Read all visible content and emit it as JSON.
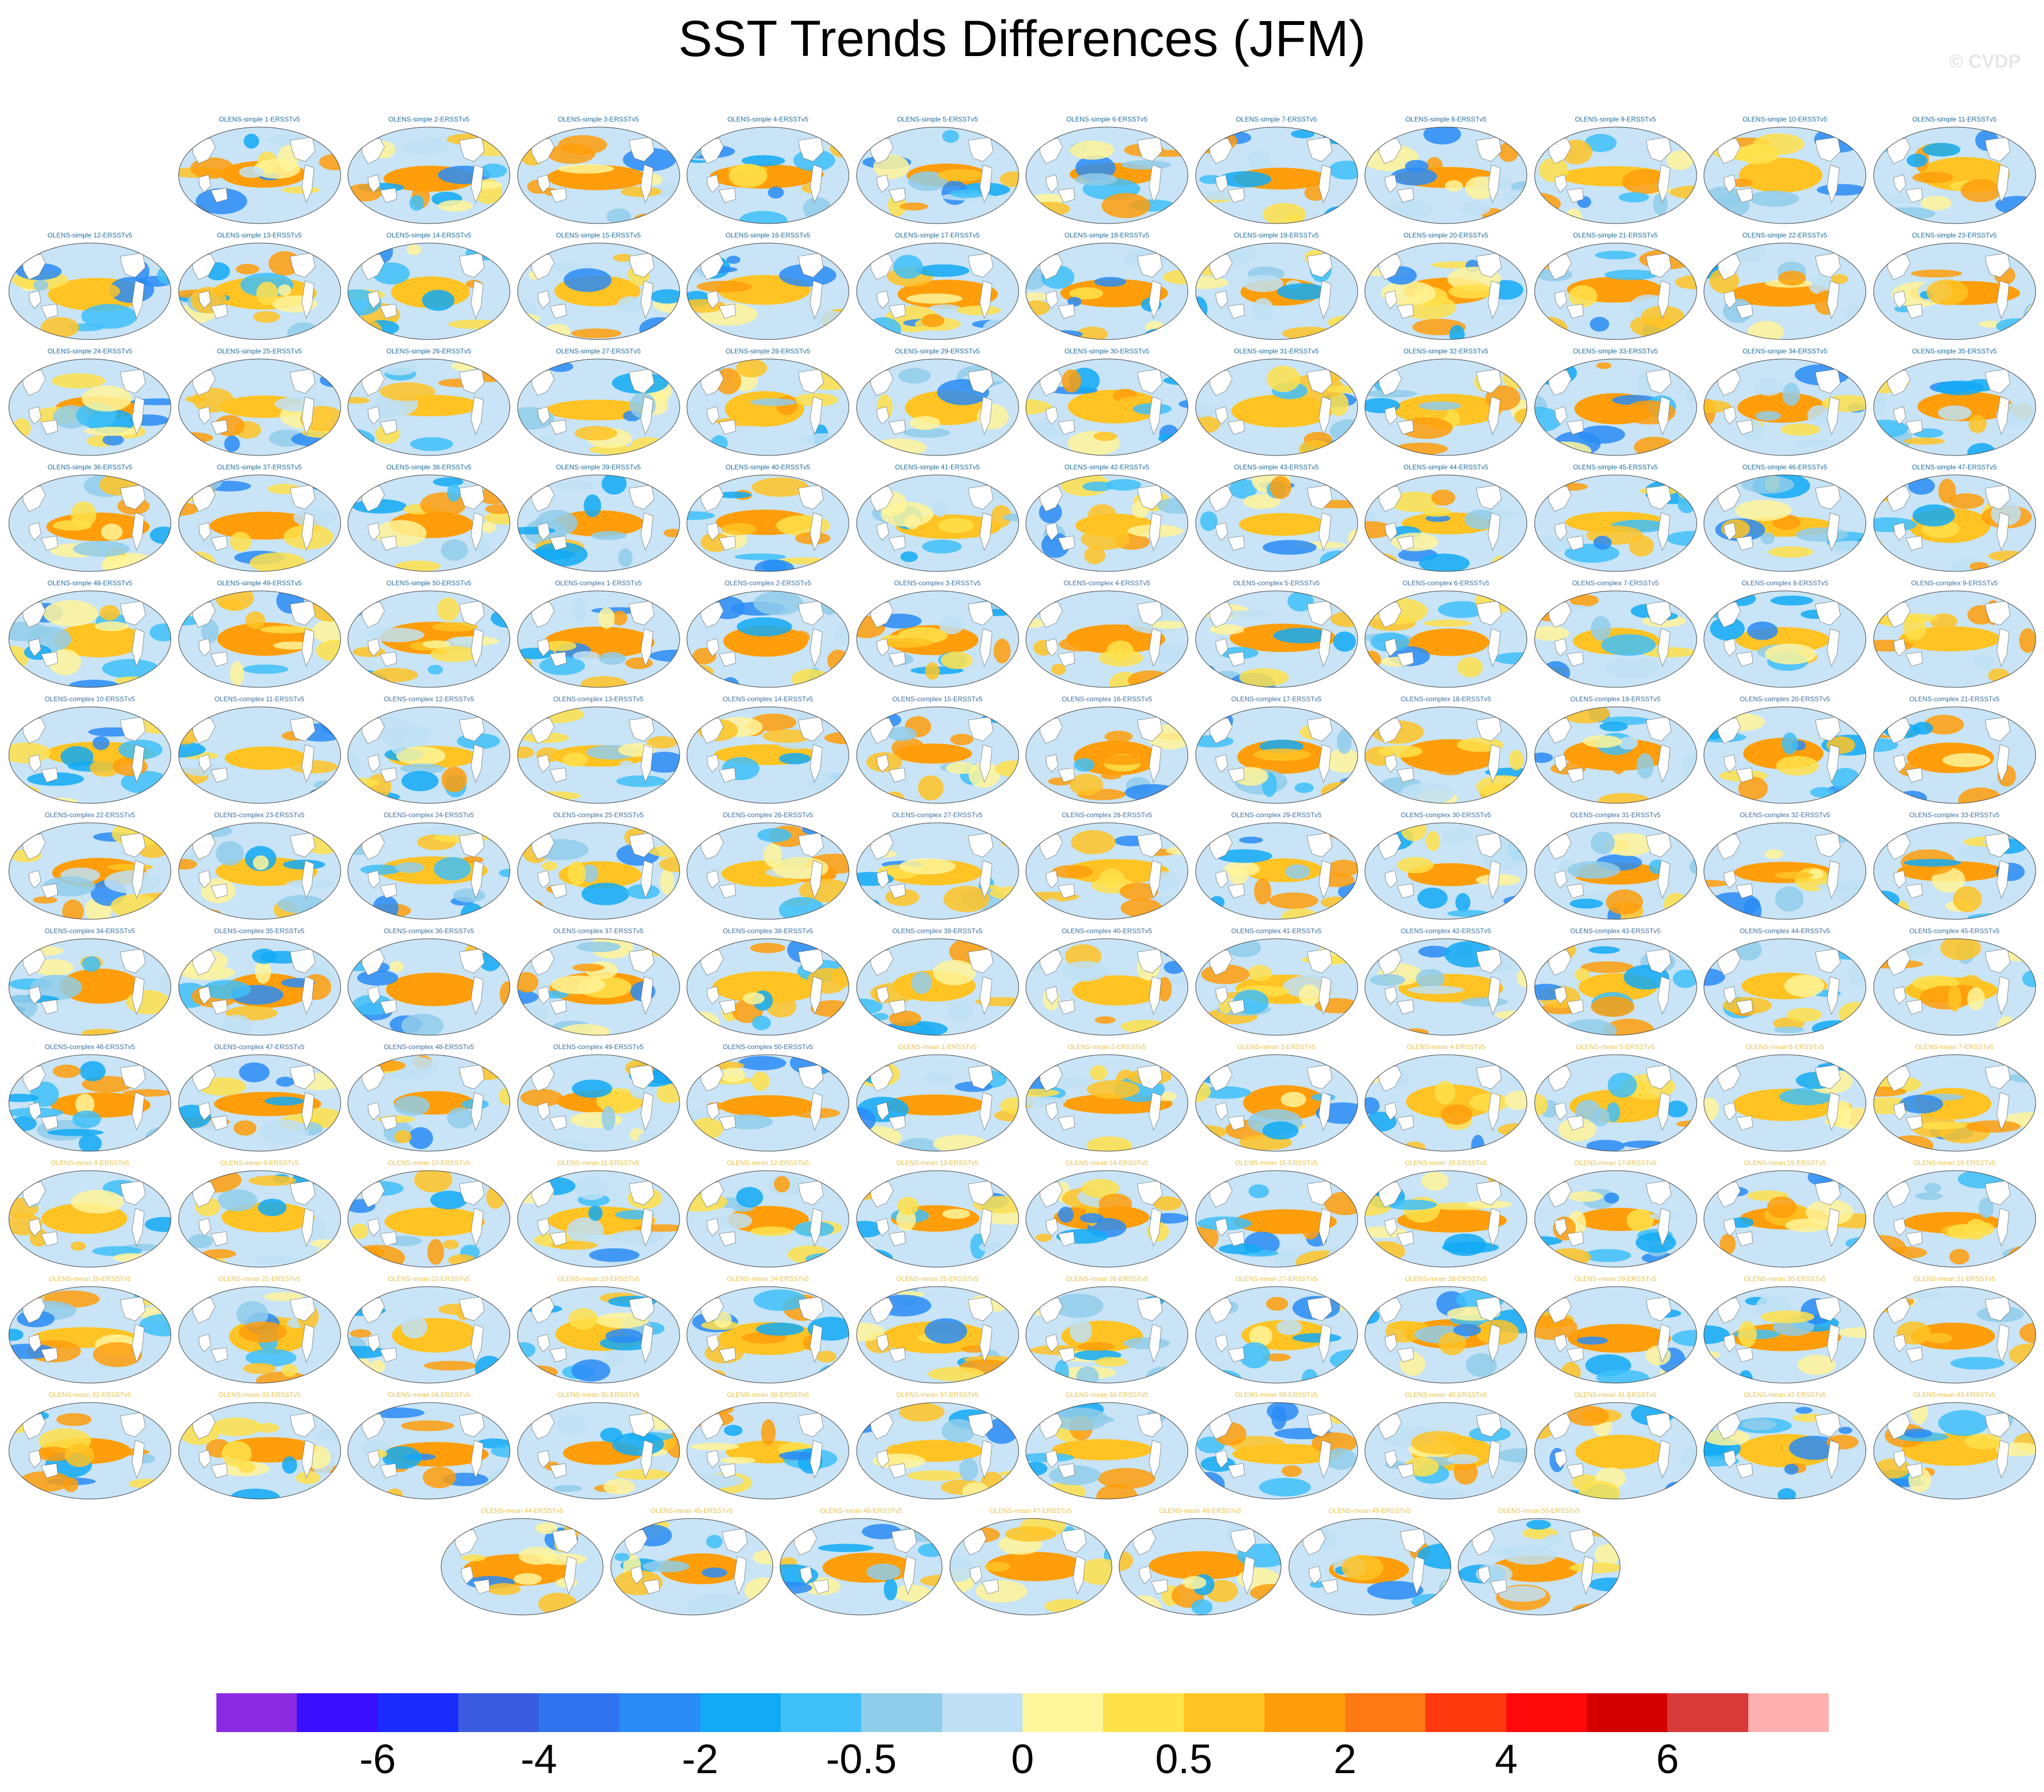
{
  "title": "SST Trends Differences (JFM)",
  "watermark": "© CVDP",
  "label_colors": {
    "simple": "#1c6b9a",
    "complex": "#3b6e9e",
    "mean": "#e6c24c"
  },
  "panels": [
    {
      "label": "OLENS-simple 1-ERSSTv5",
      "group": "simple"
    },
    {
      "label": "OLENS-simple 2-ERSSTv5",
      "group": "simple"
    },
    {
      "label": "OLENS-simple 3-ERSSTv5",
      "group": "simple"
    },
    {
      "label": "OLENS-simple 4-ERSSTv5",
      "group": "simple"
    },
    {
      "label": "OLENS-simple 5-ERSSTv5",
      "group": "simple"
    },
    {
      "label": "OLENS-simple 6-ERSSTv5",
      "group": "simple"
    },
    {
      "label": "OLENS-simple 7-ERSSTv5",
      "group": "simple"
    },
    {
      "label": "OLENS-simple 8-ERSSTv5",
      "group": "simple"
    },
    {
      "label": "OLENS-simple 9-ERSSTv5",
      "group": "simple"
    },
    {
      "label": "OLENS-simple 10-ERSSTv5",
      "group": "simple"
    },
    {
      "label": "OLENS-simple 11-ERSSTv5",
      "group": "simple"
    },
    {
      "label": "OLENS-simple 12-ERSSTv5",
      "group": "simple"
    },
    {
      "label": "OLENS-simple 13-ERSSTv5",
      "group": "simple"
    },
    {
      "label": "OLENS-simple 14-ERSSTv5",
      "group": "simple"
    },
    {
      "label": "OLENS-simple 15-ERSSTv5",
      "group": "simple"
    },
    {
      "label": "OLENS-simple 16-ERSSTv5",
      "group": "simple"
    },
    {
      "label": "OLENS-simple 17-ERSSTv5",
      "group": "simple"
    },
    {
      "label": "OLENS-simple 18-ERSSTv5",
      "group": "simple"
    },
    {
      "label": "OLENS-simple 19-ERSSTv5",
      "group": "simple"
    },
    {
      "label": "OLENS-simple 20-ERSSTv5",
      "group": "simple"
    },
    {
      "label": "OLENS-simple 21-ERSSTv5",
      "group": "simple"
    },
    {
      "label": "OLENS-simple 22-ERSSTv5",
      "group": "simple"
    },
    {
      "label": "OLENS-simple 23-ERSSTv5",
      "group": "simple"
    },
    {
      "label": "OLENS-simple 24-ERSSTv5",
      "group": "simple"
    },
    {
      "label": "OLENS-simple 25-ERSSTv5",
      "group": "simple"
    },
    {
      "label": "OLENS-simple 26-ERSSTv5",
      "group": "simple"
    },
    {
      "label": "OLENS-simple 27-ERSSTv5",
      "group": "simple"
    },
    {
      "label": "OLENS-simple 28-ERSSTv5",
      "group": "simple"
    },
    {
      "label": "OLENS-simple 29-ERSSTv5",
      "group": "simple"
    },
    {
      "label": "OLENS-simple 30-ERSSTv5",
      "group": "simple"
    },
    {
      "label": "OLENS-simple 31-ERSSTv5",
      "group": "simple"
    },
    {
      "label": "OLENS-simple 32-ERSSTv5",
      "group": "simple"
    },
    {
      "label": "OLENS-simple 33-ERSSTv5",
      "group": "simple"
    },
    {
      "label": "OLENS-simple 34-ERSSTv5",
      "group": "simple"
    },
    {
      "label": "OLENS-simple 35-ERSSTv5",
      "group": "simple"
    },
    {
      "label": "OLENS-simple 36-ERSSTv5",
      "group": "simple"
    },
    {
      "label": "OLENS-simple 37-ERSSTv5",
      "group": "simple"
    },
    {
      "label": "OLENS-simple 38-ERSSTv5",
      "group": "simple"
    },
    {
      "label": "OLENS-simple 39-ERSSTv5",
      "group": "simple"
    },
    {
      "label": "OLENS-simple 40-ERSSTv5",
      "group": "simple"
    },
    {
      "label": "OLENS-simple 41-ERSSTv5",
      "group": "simple"
    },
    {
      "label": "OLENS-simple 42-ERSSTv5",
      "group": "simple"
    },
    {
      "label": "OLENS-simple 43-ERSSTv5",
      "group": "simple"
    },
    {
      "label": "OLENS-simple 44-ERSSTv5",
      "group": "simple"
    },
    {
      "label": "OLENS-simple 45-ERSSTv5",
      "group": "simple"
    },
    {
      "label": "OLENS-simple 46-ERSSTv5",
      "group": "simple"
    },
    {
      "label": "OLENS-simple 47-ERSSTv5",
      "group": "simple"
    },
    {
      "label": "OLENS-simple 48-ERSSTv5",
      "group": "simple"
    },
    {
      "label": "OLENS-simple 49-ERSSTv5",
      "group": "simple"
    },
    {
      "label": "OLENS-simple 50-ERSSTv5",
      "group": "simple"
    },
    {
      "label": "OLENS-complex 1-ERSSTv5",
      "group": "complex"
    },
    {
      "label": "OLENS-complex 2-ERSSTv5",
      "group": "complex"
    },
    {
      "label": "OLENS-complex 3-ERSSTv5",
      "group": "complex"
    },
    {
      "label": "OLENS-complex 4-ERSSTv5",
      "group": "complex"
    },
    {
      "label": "OLENS-complex 5-ERSSTv5",
      "group": "complex"
    },
    {
      "label": "OLENS-complex 6-ERSSTv5",
      "group": "complex"
    },
    {
      "label": "OLENS-complex 7-ERSSTv5",
      "group": "complex"
    },
    {
      "label": "OLENS-complex 8-ERSSTv5",
      "group": "complex"
    },
    {
      "label": "OLENS-complex 9-ERSSTv5",
      "group": "complex"
    },
    {
      "label": "OLENS-complex 10-ERSSTv5",
      "group": "complex"
    },
    {
      "label": "OLENS-complex 11-ERSSTv5",
      "group": "complex"
    },
    {
      "label": "OLENS-complex 12-ERSSTv5",
      "group": "complex"
    },
    {
      "label": "OLENS-complex 13-ERSSTv5",
      "group": "complex"
    },
    {
      "label": "OLENS-complex 14-ERSSTv5",
      "group": "complex"
    },
    {
      "label": "OLENS-complex 15-ERSSTv5",
      "group": "complex"
    },
    {
      "label": "OLENS-complex 16-ERSSTv5",
      "group": "complex"
    },
    {
      "label": "OLENS-complex 17-ERSSTv5",
      "group": "complex"
    },
    {
      "label": "OLENS-complex 18-ERSSTv5",
      "group": "complex"
    },
    {
      "label": "OLENS-complex 19-ERSSTv5",
      "group": "complex"
    },
    {
      "label": "OLENS-complex 20-ERSSTv5",
      "group": "complex"
    },
    {
      "label": "OLENS-complex 21-ERSSTv5",
      "group": "complex"
    },
    {
      "label": "OLENS-complex 22-ERSSTv5",
      "group": "complex"
    },
    {
      "label": "OLENS-complex 23-ERSSTv5",
      "group": "complex"
    },
    {
      "label": "OLENS-complex 24-ERSSTv5",
      "group": "complex"
    },
    {
      "label": "OLENS-complex 25-ERSSTv5",
      "group": "complex"
    },
    {
      "label": "OLENS-complex 26-ERSSTv5",
      "group": "complex"
    },
    {
      "label": "OLENS-complex 27-ERSSTv5",
      "group": "complex"
    },
    {
      "label": "OLENS-complex 28-ERSSTv5",
      "group": "complex"
    },
    {
      "label": "OLENS-complex 29-ERSSTv5",
      "group": "complex"
    },
    {
      "label": "OLENS-complex 30-ERSSTv5",
      "group": "complex"
    },
    {
      "label": "OLENS-complex 31-ERSSTv5",
      "group": "complex"
    },
    {
      "label": "OLENS-complex 32-ERSSTv5",
      "group": "complex"
    },
    {
      "label": "OLENS-complex 33-ERSSTv5",
      "group": "complex"
    },
    {
      "label": "OLENS-complex 34-ERSSTv5",
      "group": "complex"
    },
    {
      "label": "OLENS-complex 35-ERSSTv5",
      "group": "complex"
    },
    {
      "label": "OLENS-complex 36-ERSSTv5",
      "group": "complex"
    },
    {
      "label": "OLENS-complex 37-ERSSTv5",
      "group": "complex"
    },
    {
      "label": "OLENS-complex 38-ERSSTv5",
      "group": "complex"
    },
    {
      "label": "OLENS-complex 39-ERSSTv5",
      "group": "complex"
    },
    {
      "label": "OLENS-complex 40-ERSSTv5",
      "group": "complex"
    },
    {
      "label": "OLENS-complex 41-ERSSTv5",
      "group": "complex"
    },
    {
      "label": "OLENS-complex 42-ERSSTv5",
      "group": "complex"
    },
    {
      "label": "OLENS-complex 43-ERSSTv5",
      "group": "complex"
    },
    {
      "label": "OLENS-complex 44-ERSSTv5",
      "group": "complex"
    },
    {
      "label": "OLENS-complex 45-ERSSTv5",
      "group": "complex"
    },
    {
      "label": "OLENS-complex 46-ERSSTv5",
      "group": "complex"
    },
    {
      "label": "OLENS-complex 47-ERSSTv5",
      "group": "complex"
    },
    {
      "label": "OLENS-complex 48-ERSSTv5",
      "group": "complex"
    },
    {
      "label": "OLENS-complex 49-ERSSTv5",
      "group": "complex"
    },
    {
      "label": "OLENS-complex 50-ERSSTv5",
      "group": "complex"
    },
    {
      "label": "OLENS-mean 1-ERSSTv5",
      "group": "mean"
    },
    {
      "label": "OLENS-mean 2-ERSSTv5",
      "group": "mean"
    },
    {
      "label": "OLENS-mean 3-ERSSTv5",
      "group": "mean"
    },
    {
      "label": "OLENS-mean 4-ERSSTv5",
      "group": "mean"
    },
    {
      "label": "OLENS-mean 5-ERSSTv5",
      "group": "mean"
    },
    {
      "label": "OLENS-mean 6-ERSSTv5",
      "group": "mean"
    },
    {
      "label": "OLENS-mean 7-ERSSTv5",
      "group": "mean"
    },
    {
      "label": "OLENS-mean 8-ERSSTv5",
      "group": "mean"
    },
    {
      "label": "OLENS-mean 9-ERSSTv5",
      "group": "mean"
    },
    {
      "label": "OLENS-mean 10-ERSSTv5",
      "group": "mean"
    },
    {
      "label": "OLENS-mean 11-ERSSTv5",
      "group": "mean"
    },
    {
      "label": "OLENS-mean 12-ERSSTv5",
      "group": "mean"
    },
    {
      "label": "OLENS-mean 13-ERSSTv5",
      "group": "mean"
    },
    {
      "label": "OLENS-mean 14-ERSSTv5",
      "group": "mean"
    },
    {
      "label": "OLENS-mean 15-ERSSTv5",
      "group": "mean"
    },
    {
      "label": "OLENS-mean 16-ERSSTv5",
      "group": "mean"
    },
    {
      "label": "OLENS-mean 17-ERSSTv5",
      "group": "mean"
    },
    {
      "label": "OLENS-mean 18-ERSSTv5",
      "group": "mean"
    },
    {
      "label": "OLENS-mean 19-ERSSTv5",
      "group": "mean"
    },
    {
      "label": "OLENS-mean 20-ERSSTv5",
      "group": "mean"
    },
    {
      "label": "OLENS-mean 21-ERSSTv5",
      "group": "mean"
    },
    {
      "label": "OLENS-mean 22-ERSSTv5",
      "group": "mean"
    },
    {
      "label": "OLENS-mean 23-ERSSTv5",
      "group": "mean"
    },
    {
      "label": "OLENS-mean 24-ERSSTv5",
      "group": "mean"
    },
    {
      "label": "OLENS-mean 25-ERSSTv5",
      "group": "mean"
    },
    {
      "label": "OLENS-mean 26-ERSSTv5",
      "group": "mean"
    },
    {
      "label": "OLENS-mean 27-ERSSTv5",
      "group": "mean"
    },
    {
      "label": "OLENS-mean 28-ERSSTv5",
      "group": "mean"
    },
    {
      "label": "OLENS-mean 29-ERSSTv5",
      "group": "mean"
    },
    {
      "label": "OLENS-mean 30-ERSSTv5",
      "group": "mean"
    },
    {
      "label": "OLENS-mean 31-ERSSTv5",
      "group": "mean"
    },
    {
      "label": "OLENS-mean 32-ERSSTv5",
      "group": "mean"
    },
    {
      "label": "OLENS-mean 33-ERSSTv5",
      "group": "mean"
    },
    {
      "label": "OLENS-mean 34-ERSSTv5",
      "group": "mean"
    },
    {
      "label": "OLENS-mean 35-ERSSTv5",
      "group": "mean"
    },
    {
      "label": "OLENS-mean 36-ERSSTv5",
      "group": "mean"
    },
    {
      "label": "OLENS-mean 37-ERSSTv5",
      "group": "mean"
    },
    {
      "label": "OLENS-mean 38-ERSSTv5",
      "group": "mean"
    },
    {
      "label": "OLENS-mean 39-ERSSTv5",
      "group": "mean"
    },
    {
      "label": "OLENS-mean 40-ERSSTv5",
      "group": "mean"
    },
    {
      "label": "OLENS-mean 41-ERSSTv5",
      "group": "mean"
    },
    {
      "label": "OLENS-mean 42-ERSSTv5",
      "group": "mean"
    },
    {
      "label": "OLENS-mean 43-ERSSTv5",
      "group": "mean"
    },
    {
      "label": "OLENS-mean 44-ERSSTv5",
      "group": "mean"
    },
    {
      "label": "OLENS-mean 45-ERSSTv5",
      "group": "mean"
    },
    {
      "label": "OLENS-mean 46-ERSSTv5",
      "group": "mean"
    },
    {
      "label": "OLENS-mean 47-ERSSTv5",
      "group": "mean"
    },
    {
      "label": "OLENS-mean 48-ERSSTv5",
      "group": "mean"
    },
    {
      "label": "OLENS-mean 49-ERSSTv5",
      "group": "mean"
    },
    {
      "label": "OLENS-mean 50-ERSSTv5",
      "group": "mean"
    }
  ],
  "colorbar": {
    "colors": [
      "#8a2be2",
      "#3a0fff",
      "#1a2cff",
      "#3a5be0",
      "#2f74ee",
      "#2a8cf5",
      "#12aaf5",
      "#40c0f8",
      "#90cdea",
      "#bfe0f5",
      "#fff59a",
      "#ffe14a",
      "#ffc324",
      "#ff9e0a",
      "#ff7a14",
      "#ff3a0e",
      "#ff0a0a",
      "#d40000",
      "#d83a3a",
      "#ffb0b0"
    ],
    "labels": [
      {
        "text": "-6",
        "boundary": 2
      },
      {
        "text": "-4",
        "boundary": 4
      },
      {
        "text": "-2",
        "boundary": 6
      },
      {
        "text": "-0.5",
        "boundary": 8
      },
      {
        "text": "0",
        "boundary": 10
      },
      {
        "text": "0.5",
        "boundary": 12
      },
      {
        "text": "2",
        "boundary": 14
      },
      {
        "text": "4",
        "boundary": 16
      },
      {
        "text": "6",
        "boundary": 18
      }
    ]
  }
}
